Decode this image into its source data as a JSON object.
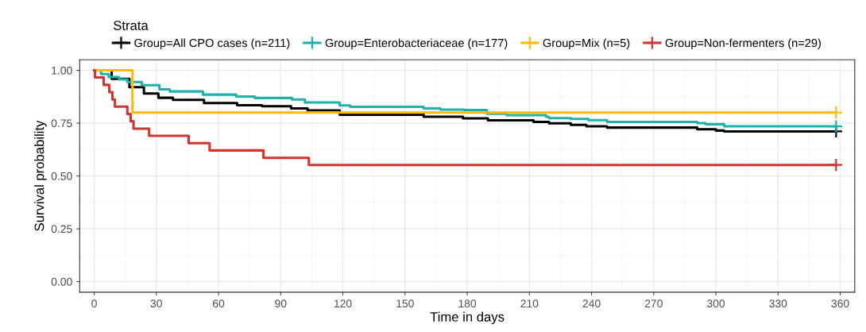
{
  "chart_data": {
    "type": "step",
    "xlabel": "Time in days",
    "ylabel": "Survival probability",
    "legend_title": "Strata",
    "legend": "top",
    "grid": true,
    "xlim": [
      -7,
      367
    ],
    "ylim": [
      -0.05,
      1.05
    ],
    "xticks": [
      0,
      30,
      60,
      90,
      120,
      150,
      180,
      210,
      240,
      270,
      300,
      330,
      360
    ],
    "yticks": [
      {
        "value": 0,
        "label": "0.00"
      },
      {
        "value": 0.25,
        "label": "0.25"
      },
      {
        "value": 0.5,
        "label": "0.50"
      },
      {
        "value": 0.75,
        "label": "0.75"
      },
      {
        "value": 1,
        "label": "1.00"
      }
    ],
    "series": [
      {
        "name": "Group=All CPO cases (n=211)",
        "color": "#000000",
        "x": [
          0,
          8.4,
          17,
          24,
          31,
          38,
          53,
          69,
          81,
          95,
          103,
          118.5,
          159,
          178,
          190,
          212,
          219.5,
          230,
          237.5,
          247.5,
          291,
          300,
          304,
          358
        ],
        "values": [
          1.0,
          0.96,
          0.92,
          0.89,
          0.87,
          0.86,
          0.845,
          0.835,
          0.83,
          0.82,
          0.81,
          0.79,
          0.78,
          0.773,
          0.763,
          0.756,
          0.749,
          0.742,
          0.735,
          0.729,
          0.721,
          0.715,
          0.711,
          0.711
        ]
      },
      {
        "name": "Group=Enterobacteriaceae (n=177)",
        "color": "#20b2aa",
        "x": [
          0,
          3.3,
          7,
          12,
          16,
          23,
          31.5,
          36.5,
          52.5,
          68.5,
          77.5,
          95.5,
          101.7,
          118.5,
          123.5,
          159,
          167,
          178.5,
          189.5,
          199,
          218,
          219.5,
          230,
          238.5,
          247.5,
          291,
          295,
          304,
          358
        ],
        "values": [
          1.0,
          0.982,
          0.968,
          0.957,
          0.945,
          0.93,
          0.91,
          0.9,
          0.885,
          0.876,
          0.869,
          0.862,
          0.848,
          0.834,
          0.827,
          0.82,
          0.814,
          0.812,
          0.794,
          0.788,
          0.78,
          0.774,
          0.77,
          0.764,
          0.756,
          0.75,
          0.745,
          0.735,
          0.735
        ]
      },
      {
        "name": "Group=Mix (n=5)",
        "color": "#ffb90f",
        "x": [
          0,
          18.5,
          358
        ],
        "values": [
          1.0,
          0.8,
          0.8
        ]
      },
      {
        "name": "Group=Non-fermenters (n=29)",
        "color": "#d03530",
        "x": [
          0,
          0.4,
          4.6,
          7.3,
          8.8,
          10,
          16,
          17.6,
          19,
          26.5,
          45.6,
          55.7,
          81.7,
          103.6,
          358
        ],
        "values": [
          1.0,
          0.966,
          0.931,
          0.897,
          0.862,
          0.828,
          0.793,
          0.759,
          0.724,
          0.69,
          0.655,
          0.621,
          0.586,
          0.552,
          0.552
        ]
      },
      {
        "type": "scatter",
        "marker": "cross",
        "color": "#000000",
        "x": [
          358
        ],
        "values": [
          0.711
        ]
      },
      {
        "type": "scatter",
        "marker": "cross",
        "color": "#20b2aa",
        "x": [
          358
        ],
        "values": [
          0.735
        ]
      },
      {
        "type": "scatter",
        "marker": "cross",
        "color": "#ffb90f",
        "x": [
          358
        ],
        "values": [
          0.8
        ]
      },
      {
        "type": "scatter",
        "marker": "cross",
        "color": "#d03530",
        "x": [
          358
        ],
        "values": [
          0.552
        ]
      }
    ]
  }
}
